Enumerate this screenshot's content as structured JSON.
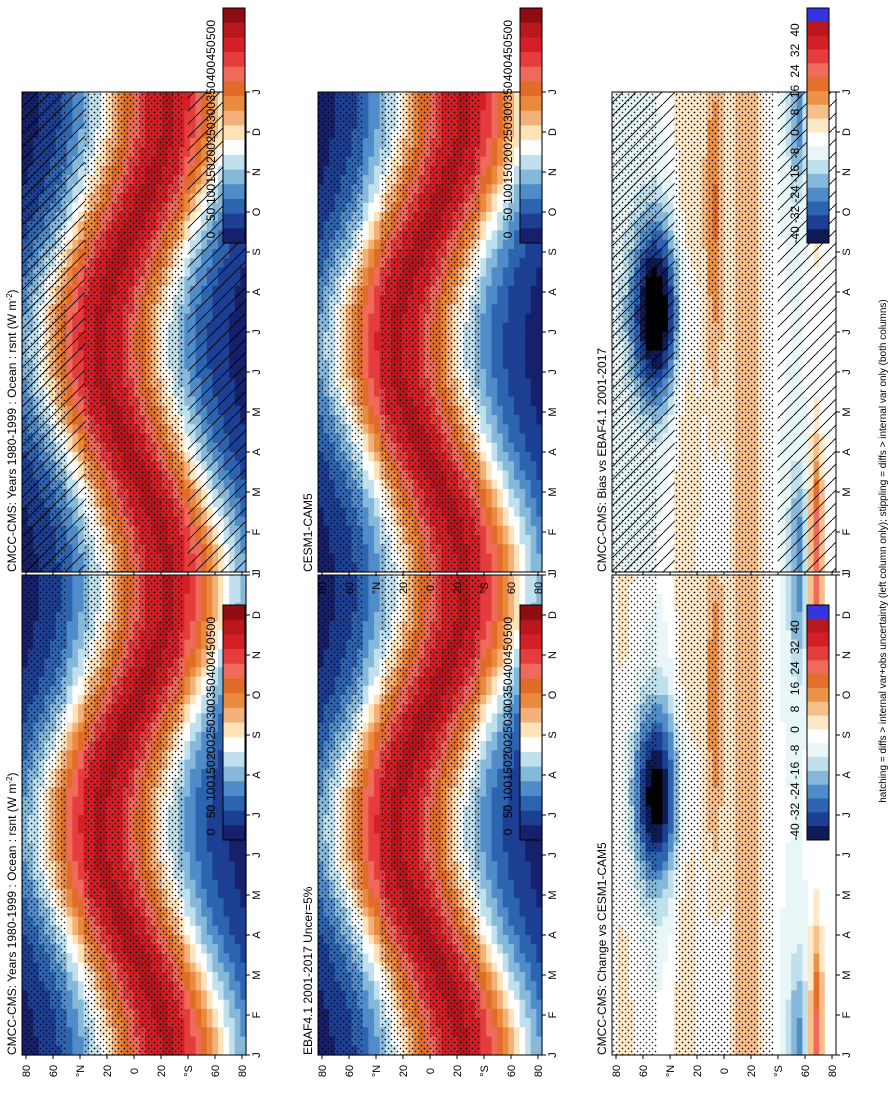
{
  "figure": {
    "footnote": "hatching = diffs > internal var+obs uncertainty (left column only); stippling = diffs > internal var only (both columns)"
  },
  "chart_data": [
    {
      "type": "heatmap",
      "title": "CMCC-CMS: Years 1980-1999 : Ocean : rsnt (W m",
      "title_superscript": "-2",
      "title_suffix": ")",
      "months": [
        "J",
        "F",
        "M",
        "A",
        "M",
        "J",
        "J",
        "A",
        "S",
        "O",
        "N",
        "D",
        "J"
      ],
      "lat_ticks": [
        "80",
        "60",
        "°N",
        "20",
        "0",
        "20",
        "°S",
        "60",
        "80"
      ],
      "lat_range": [
        -90,
        90
      ],
      "colorbar": {
        "labels": [
          "0",
          "50",
          "100",
          "150",
          "200",
          "250",
          "300",
          "350",
          "400",
          "450",
          "500"
        ],
        "range": [
          0,
          500
        ]
      },
      "field": "absolute",
      "hatching": true,
      "stippling": true
    },
    {
      "type": "heatmap",
      "title": "CMCC-CMS: Years 1980-1999 : Ocean : rsnt (W m",
      "title_superscript": "-2",
      "title_suffix": ")",
      "months": [
        "J",
        "F",
        "M",
        "A",
        "M",
        "J",
        "J",
        "A",
        "S",
        "O",
        "N",
        "D",
        "J"
      ],
      "lat_ticks": [
        "80",
        "60",
        "°N",
        "20",
        "0",
        "20",
        "°S",
        "60",
        "80"
      ],
      "lat_range": [
        -90,
        90
      ],
      "colorbar": {
        "labels": [
          "0",
          "50",
          "100",
          "150",
          "200",
          "250",
          "300",
          "350",
          "400",
          "450",
          "500"
        ],
        "range": [
          0,
          500
        ]
      },
      "field": "absolute",
      "hatching": false,
      "stippling": true
    },
    {
      "type": "heatmap",
      "title": "EBAF4.1 2001-2017 Uncer=5%",
      "title_superscript": "",
      "title_suffix": "",
      "months": [
        "J",
        "F",
        "M",
        "A",
        "M",
        "J",
        "J",
        "A",
        "S",
        "O",
        "N",
        "D",
        "J"
      ],
      "lat_ticks": [
        "80",
        "60",
        "°N",
        "20",
        "0",
        "20",
        "°S",
        "60",
        "80"
      ],
      "lat_range": [
        -90,
        90
      ],
      "colorbar": {
        "labels": [
          "0",
          "50",
          "100",
          "150",
          "200",
          "250",
          "300",
          "350",
          "400",
          "450",
          "500"
        ],
        "range": [
          0,
          500
        ]
      },
      "field": "absolute",
      "hatching": false,
      "stippling": true
    },
    {
      "type": "heatmap",
      "title": "CESM1-CAM5",
      "title_superscript": "",
      "title_suffix": "",
      "months": [
        "J",
        "F",
        "M",
        "A",
        "M",
        "J",
        "J",
        "A",
        "S",
        "O",
        "N",
        "D",
        "J"
      ],
      "lat_ticks": [
        "80",
        "60",
        "°N",
        "20",
        "0",
        "20",
        "°S",
        "60",
        "80"
      ],
      "lat_range": [
        -90,
        90
      ],
      "colorbar": {
        "labels": [
          "0",
          "50",
          "100",
          "150",
          "200",
          "250",
          "300",
          "350",
          "400",
          "450",
          "500"
        ],
        "range": [
          0,
          500
        ]
      },
      "field": "absolute",
      "hatching": false,
      "stippling": true
    },
    {
      "type": "heatmap",
      "title": "CMCC-CMS: Bias vs EBAF4.1 2001-2017",
      "title_superscript": "",
      "title_suffix": "",
      "months": [
        "J",
        "F",
        "M",
        "A",
        "M",
        "J",
        "J",
        "A",
        "S",
        "O",
        "N",
        "D",
        "J"
      ],
      "lat_ticks": [
        "80",
        "60",
        "°N",
        "20",
        "0",
        "20",
        "°S",
        "60",
        "80"
      ],
      "lat_range": [
        -90,
        90
      ],
      "colorbar": {
        "labels": [
          "-40",
          "-32",
          "-24",
          "-16",
          "-8",
          "0",
          "8",
          "16",
          "24",
          "32",
          "40"
        ],
        "range": [
          -40,
          40
        ]
      },
      "field": "bias",
      "hatching": true,
      "stippling": true
    },
    {
      "type": "heatmap",
      "title": "CMCC-CMS: Change vs CESM1-CAM5",
      "title_superscript": "",
      "title_suffix": "",
      "months": [
        "J",
        "F",
        "M",
        "A",
        "M",
        "J",
        "J",
        "A",
        "S",
        "O",
        "N",
        "D",
        "J"
      ],
      "lat_ticks": [
        "80",
        "60",
        "°N",
        "20",
        "0",
        "20",
        "°S",
        "60",
        "80"
      ],
      "lat_range": [
        -90,
        90
      ],
      "colorbar": {
        "labels": [
          "-40",
          "-32",
          "-24",
          "-16",
          "-8",
          "0",
          "8",
          "16",
          "24",
          "32",
          "40"
        ],
        "range": [
          -40,
          40
        ]
      },
      "field": "change",
      "hatching": false,
      "stippling": true
    }
  ],
  "colors": {
    "absolute": [
      "#17206b",
      "#1c3f94",
      "#2d64b0",
      "#4f8cc9",
      "#86b8da",
      "#bfe0ec",
      "#ffffff",
      "#fde3b8",
      "#f4b07a",
      "#e98a3d",
      "#e16c2a",
      "#f06a5b",
      "#e53d3d",
      "#d41f26",
      "#b8171e",
      "#8f0d12",
      "#2b2bd6",
      "#1414e8",
      "#0000ff"
    ],
    "diff": [
      "#000000",
      "#101a55",
      "#1c3f94",
      "#2d64b0",
      "#4f8cc9",
      "#86b8da",
      "#bfe0ec",
      "#e8f6f8",
      "#ffffff",
      "#fde9c8",
      "#f7c08b",
      "#eb9449",
      "#e36f2d",
      "#f06a5b",
      "#e53d3d",
      "#d41f26",
      "#b8171e",
      "#3333e0",
      "#0000ff"
    ]
  }
}
